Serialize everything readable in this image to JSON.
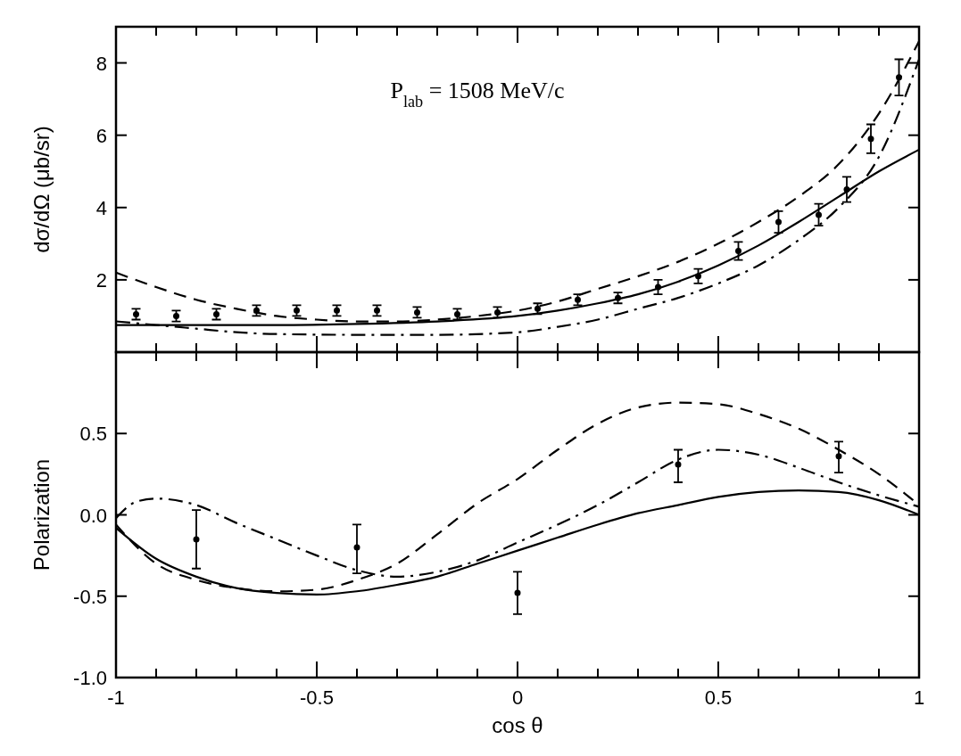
{
  "chart_data": [
    {
      "type": "line",
      "ylabel": "dσ/dΩ (μb/sr)",
      "xlim": [
        -1,
        1
      ],
      "ylim": [
        0,
        9
      ],
      "xticks": [
        -1,
        {
          "value": -0.9,
          "label": null
        },
        {
          "value": -0.8,
          "label": null
        },
        {
          "value": -0.7,
          "label": null
        },
        {
          "value": -0.6,
          "label": null
        },
        -0.5,
        {
          "value": -0.4,
          "label": null
        },
        {
          "value": -0.3,
          "label": null
        },
        {
          "value": -0.2,
          "label": null
        },
        {
          "value": -0.1,
          "label": null
        },
        0,
        {
          "value": 0.1,
          "label": null
        },
        {
          "value": 0.2,
          "label": null
        },
        {
          "value": 0.3,
          "label": null
        },
        {
          "value": 0.4,
          "label": null
        },
        0.5,
        {
          "value": 0.6,
          "label": null
        },
        {
          "value": 0.7,
          "label": null
        },
        {
          "value": 0.8,
          "label": null
        },
        {
          "value": 0.9,
          "label": null
        },
        1
      ],
      "yticks": [
        2,
        4,
        6,
        8
      ],
      "tick_labels": "y",
      "grid": false,
      "annotations": [
        "P$_{lab}$ = 1508 MeV/c"
      ],
      "series": [
        {
          "type": "scatter",
          "color": "#000000",
          "marker": "circle",
          "x": [
            -0.95,
            -0.85,
            -0.75,
            -0.65,
            -0.55,
            -0.45,
            -0.35,
            -0.25,
            -0.15,
            -0.05,
            0.05,
            0.15,
            0.25,
            0.35,
            0.45,
            0.55,
            0.65,
            0.75,
            0.82,
            0.88,
            0.95
          ],
          "values": [
            1.05,
            1.0,
            1.05,
            1.15,
            1.15,
            1.15,
            1.15,
            1.1,
            1.05,
            1.1,
            1.2,
            1.45,
            1.5,
            1.8,
            2.1,
            2.8,
            3.6,
            3.8,
            4.5,
            5.9,
            7.6
          ],
          "errors": [
            0.15,
            0.15,
            0.15,
            0.15,
            0.15,
            0.15,
            0.15,
            0.15,
            0.15,
            0.15,
            0.15,
            0.15,
            0.15,
            0.2,
            0.2,
            0.25,
            0.3,
            0.3,
            0.35,
            0.4,
            0.5
          ]
        },
        {
          "type": "line",
          "color": "#000000",
          "line_style": "solid",
          "x": [
            -1,
            -0.8,
            -0.6,
            -0.4,
            -0.2,
            0,
            0.1,
            0.2,
            0.3,
            0.4,
            0.5,
            0.6,
            0.7,
            0.8,
            0.9,
            1
          ],
          "values": [
            0.75,
            0.75,
            0.75,
            0.78,
            0.85,
            1.0,
            1.15,
            1.35,
            1.6,
            1.95,
            2.4,
            2.95,
            3.6,
            4.3,
            5.0,
            5.6
          ]
        },
        {
          "type": "line",
          "color": "#000000",
          "line_style": "dashed",
          "x": [
            -1,
            -0.9,
            -0.8,
            -0.7,
            -0.6,
            -0.5,
            -0.4,
            -0.3,
            -0.2,
            -0.1,
            0,
            0.1,
            0.2,
            0.3,
            0.4,
            0.5,
            0.6,
            0.7,
            0.8,
            0.9,
            1
          ],
          "values": [
            2.2,
            1.8,
            1.45,
            1.2,
            1.0,
            0.9,
            0.85,
            0.85,
            0.9,
            1.0,
            1.15,
            1.4,
            1.75,
            2.1,
            2.5,
            3.0,
            3.6,
            4.3,
            5.2,
            6.6,
            8.6
          ]
        },
        {
          "type": "line",
          "color": "#000000",
          "line_style": "dashdot",
          "x": [
            -1,
            -0.9,
            -0.8,
            -0.7,
            -0.6,
            -0.4,
            -0.2,
            0,
            0.1,
            0.2,
            0.3,
            0.4,
            0.5,
            0.6,
            0.7,
            0.8,
            0.9,
            1
          ],
          "values": [
            0.85,
            0.75,
            0.65,
            0.55,
            0.5,
            0.48,
            0.48,
            0.55,
            0.7,
            0.9,
            1.2,
            1.5,
            1.9,
            2.4,
            3.1,
            4.0,
            5.4,
            8.1
          ]
        }
      ]
    },
    {
      "type": "line",
      "xlabel": "cos θ",
      "ylabel": "Polarization",
      "xlim": [
        -1,
        1
      ],
      "ylim": [
        -1,
        1
      ],
      "xticks": [
        -1,
        {
          "value": -0.9,
          "label": null
        },
        {
          "value": -0.8,
          "label": null
        },
        {
          "value": -0.7,
          "label": null
        },
        {
          "value": -0.6,
          "label": null
        },
        -0.5,
        {
          "value": -0.4,
          "label": null
        },
        {
          "value": -0.3,
          "label": null
        },
        {
          "value": -0.2,
          "label": null
        },
        {
          "value": -0.1,
          "label": null
        },
        0,
        {
          "value": 0.1,
          "label": null
        },
        {
          "value": 0.2,
          "label": null
        },
        {
          "value": 0.3,
          "label": null
        },
        {
          "value": 0.4,
          "label": null
        },
        0.5,
        {
          "value": 0.6,
          "label": null
        },
        {
          "value": 0.7,
          "label": null
        },
        {
          "value": 0.8,
          "label": null
        },
        {
          "value": 0.9,
          "label": null
        },
        1
      ],
      "yticks": [
        {
          "value": -1,
          "label": "-1.0"
        },
        -0.5,
        {
          "value": 0,
          "label": "0.0"
        },
        0.5
      ],
      "grid": false,
      "series": [
        {
          "type": "scatter",
          "color": "#000000",
          "marker": "circle",
          "x": [
            -0.8,
            -0.4,
            0,
            0.4,
            0.8
          ],
          "values": [
            -0.15,
            -0.2,
            -0.48,
            0.31,
            0.36
          ],
          "errors": [
            [
              -0.33,
              0.03
            ],
            [
              -0.36,
              -0.06
            ],
            [
              -0.61,
              -0.35
            ],
            [
              0.2,
              0.4
            ],
            [
              0.26,
              0.45
            ]
          ]
        },
        {
          "type": "line",
          "color": "#000000",
          "line_style": "solid",
          "x": [
            -1,
            -0.9,
            -0.8,
            -0.7,
            -0.6,
            -0.5,
            -0.4,
            -0.3,
            -0.2,
            -0.1,
            0,
            0.1,
            0.2,
            0.3,
            0.4,
            0.5,
            0.6,
            0.7,
            0.8,
            0.9,
            1
          ],
          "values": [
            -0.08,
            -0.27,
            -0.38,
            -0.45,
            -0.48,
            -0.49,
            -0.47,
            -0.43,
            -0.38,
            -0.3,
            -0.22,
            -0.14,
            -0.06,
            0.01,
            0.06,
            0.11,
            0.14,
            0.15,
            0.14,
            0.09,
            0.0
          ]
        },
        {
          "type": "line",
          "color": "#000000",
          "line_style": "dashed",
          "x": [
            -1,
            -0.9,
            -0.8,
            -0.7,
            -0.6,
            -0.5,
            -0.4,
            -0.3,
            -0.2,
            -0.1,
            0,
            0.1,
            0.2,
            0.3,
            0.4,
            0.5,
            0.6,
            0.7,
            0.8,
            0.9,
            1
          ],
          "values": [
            -0.06,
            -0.3,
            -0.4,
            -0.45,
            -0.47,
            -0.46,
            -0.4,
            -0.3,
            -0.12,
            0.07,
            0.22,
            0.4,
            0.56,
            0.66,
            0.69,
            0.68,
            0.62,
            0.53,
            0.4,
            0.25,
            0.06
          ]
        },
        {
          "type": "line",
          "color": "#000000",
          "line_style": "dashdot",
          "x": [
            -1,
            -0.95,
            -0.9,
            -0.8,
            -0.7,
            -0.6,
            -0.5,
            -0.4,
            -0.3,
            -0.2,
            -0.1,
            0,
            0.1,
            0.2,
            0.3,
            0.4,
            0.5,
            0.6,
            0.7,
            0.8,
            0.9,
            1
          ],
          "values": [
            -0.02,
            0.08,
            0.1,
            0.06,
            -0.05,
            -0.15,
            -0.25,
            -0.34,
            -0.38,
            -0.35,
            -0.28,
            -0.17,
            -0.06,
            0.06,
            0.2,
            0.34,
            0.4,
            0.37,
            0.29,
            0.2,
            0.12,
            0.05
          ]
        }
      ]
    }
  ]
}
